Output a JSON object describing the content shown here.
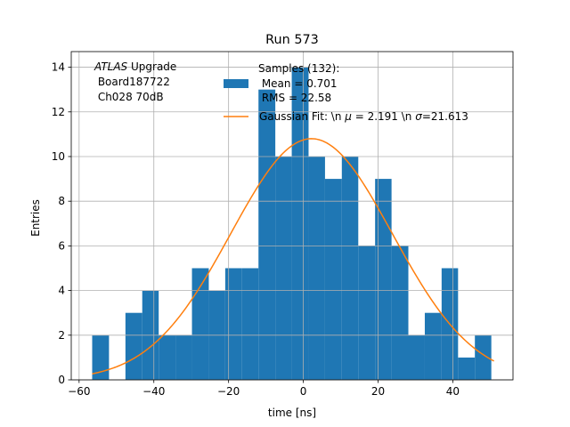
{
  "chart_data": {
    "type": "bar",
    "title": "Run 573",
    "xlabel": "time [ns]",
    "ylabel": "Entries",
    "xlim": [
      -62.1,
      56.1
    ],
    "ylim": [
      0,
      14.7
    ],
    "grid": true,
    "xticks": [
      -60,
      -40,
      -20,
      0,
      20,
      40
    ],
    "yticks": [
      0,
      2,
      4,
      6,
      8,
      10,
      12,
      14
    ],
    "bin_edges": [
      -56.5,
      -52.0,
      -47.6,
      -43.1,
      -38.7,
      -34.2,
      -29.8,
      -25.3,
      -20.9,
      -16.4,
      -12.0,
      -7.5,
      -3.1,
      1.4,
      5.8,
      10.3,
      14.7,
      19.2,
      23.6,
      28.1,
      32.5,
      37.0,
      41.4,
      45.9,
      50.3
    ],
    "counts": [
      2,
      0,
      3,
      4,
      2,
      2,
      5,
      4,
      5,
      5,
      13,
      10,
      14,
      10,
      9,
      10,
      6,
      9,
      6,
      2,
      3,
      5,
      1,
      2
    ],
    "series": [
      {
        "name": "Samples (132):\n Mean = 0.701\n RMS = 22.58",
        "kind": "histogram",
        "color": "#1f77b4"
      },
      {
        "name": "Gaussian Fit: \\n $\\mu$ = 2.191 \\n $\\sigma$=21.613",
        "kind": "line",
        "color": "#ff7f0e",
        "mu": 2.191,
        "sigma": 21.613,
        "amplitude": 10.8,
        "x_range": [
          -56.5,
          51.0
        ]
      }
    ],
    "legend": {
      "position": "top-center",
      "hist_label_lines": [
        "Samples (132):",
        " Mean = 0.701",
        " RMS = 22.58"
      ],
      "fit_label_parts": {
        "prefix": "Gaussian Fit: \\n ",
        "mu_symbol": "μ",
        "mid": " = 2.191 \\n ",
        "sigma_symbol": "σ",
        "suffix": "=21.613"
      }
    },
    "annotation": {
      "italic": "ATLAS",
      "rest": " Upgrade",
      "line2": " Board187722",
      "line3": " Ch028 70dB"
    }
  }
}
